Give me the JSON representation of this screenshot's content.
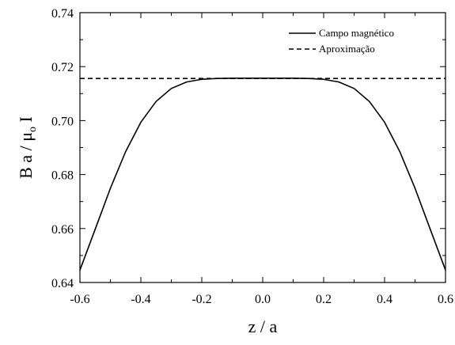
{
  "chart_data": {
    "type": "line",
    "xlabel": "z / a",
    "ylabel_parts": {
      "main": "B a / μ",
      "sub": "o",
      "tail": " I"
    },
    "xlim": [
      -0.6,
      0.6
    ],
    "ylim": [
      0.64,
      0.74
    ],
    "xticks": [
      -0.6,
      -0.4,
      -0.2,
      0.0,
      0.2,
      0.4,
      0.6
    ],
    "xtick_labels": [
      "-0.6",
      "-0.4",
      "-0.2",
      "0.0",
      "0.2",
      "0.4",
      "0.6"
    ],
    "yticks": [
      0.64,
      0.66,
      0.68,
      0.7,
      0.72,
      0.74
    ],
    "ytick_labels": [
      "0.64",
      "0.66",
      "0.68",
      "0.70",
      "0.72",
      "0.74"
    ],
    "grid": false,
    "legend_position": "top-right",
    "series": [
      {
        "name": "Campo magnético",
        "style": "solid",
        "color": "#000000",
        "x": [
          -0.6,
          -0.55,
          -0.5,
          -0.45,
          -0.4,
          -0.35,
          -0.3,
          -0.25,
          -0.2,
          -0.15,
          -0.1,
          -0.05,
          0.0,
          0.05,
          0.1,
          0.15,
          0.2,
          0.25,
          0.3,
          0.35,
          0.4,
          0.45,
          0.5,
          0.55,
          0.6
        ],
        "y": [
          0.6446,
          0.6597,
          0.6749,
          0.6885,
          0.6994,
          0.7071,
          0.7119,
          0.7143,
          0.7153,
          0.7156,
          0.7157,
          0.7157,
          0.7157,
          0.7157,
          0.7157,
          0.7156,
          0.7153,
          0.7143,
          0.7119,
          0.7071,
          0.6994,
          0.6885,
          0.6749,
          0.6597,
          0.6446
        ]
      },
      {
        "name": "Aproximação",
        "style": "dashed",
        "color": "#000000",
        "x": [
          -0.6,
          0.6
        ],
        "y": [
          0.7156,
          0.7156
        ]
      }
    ]
  }
}
